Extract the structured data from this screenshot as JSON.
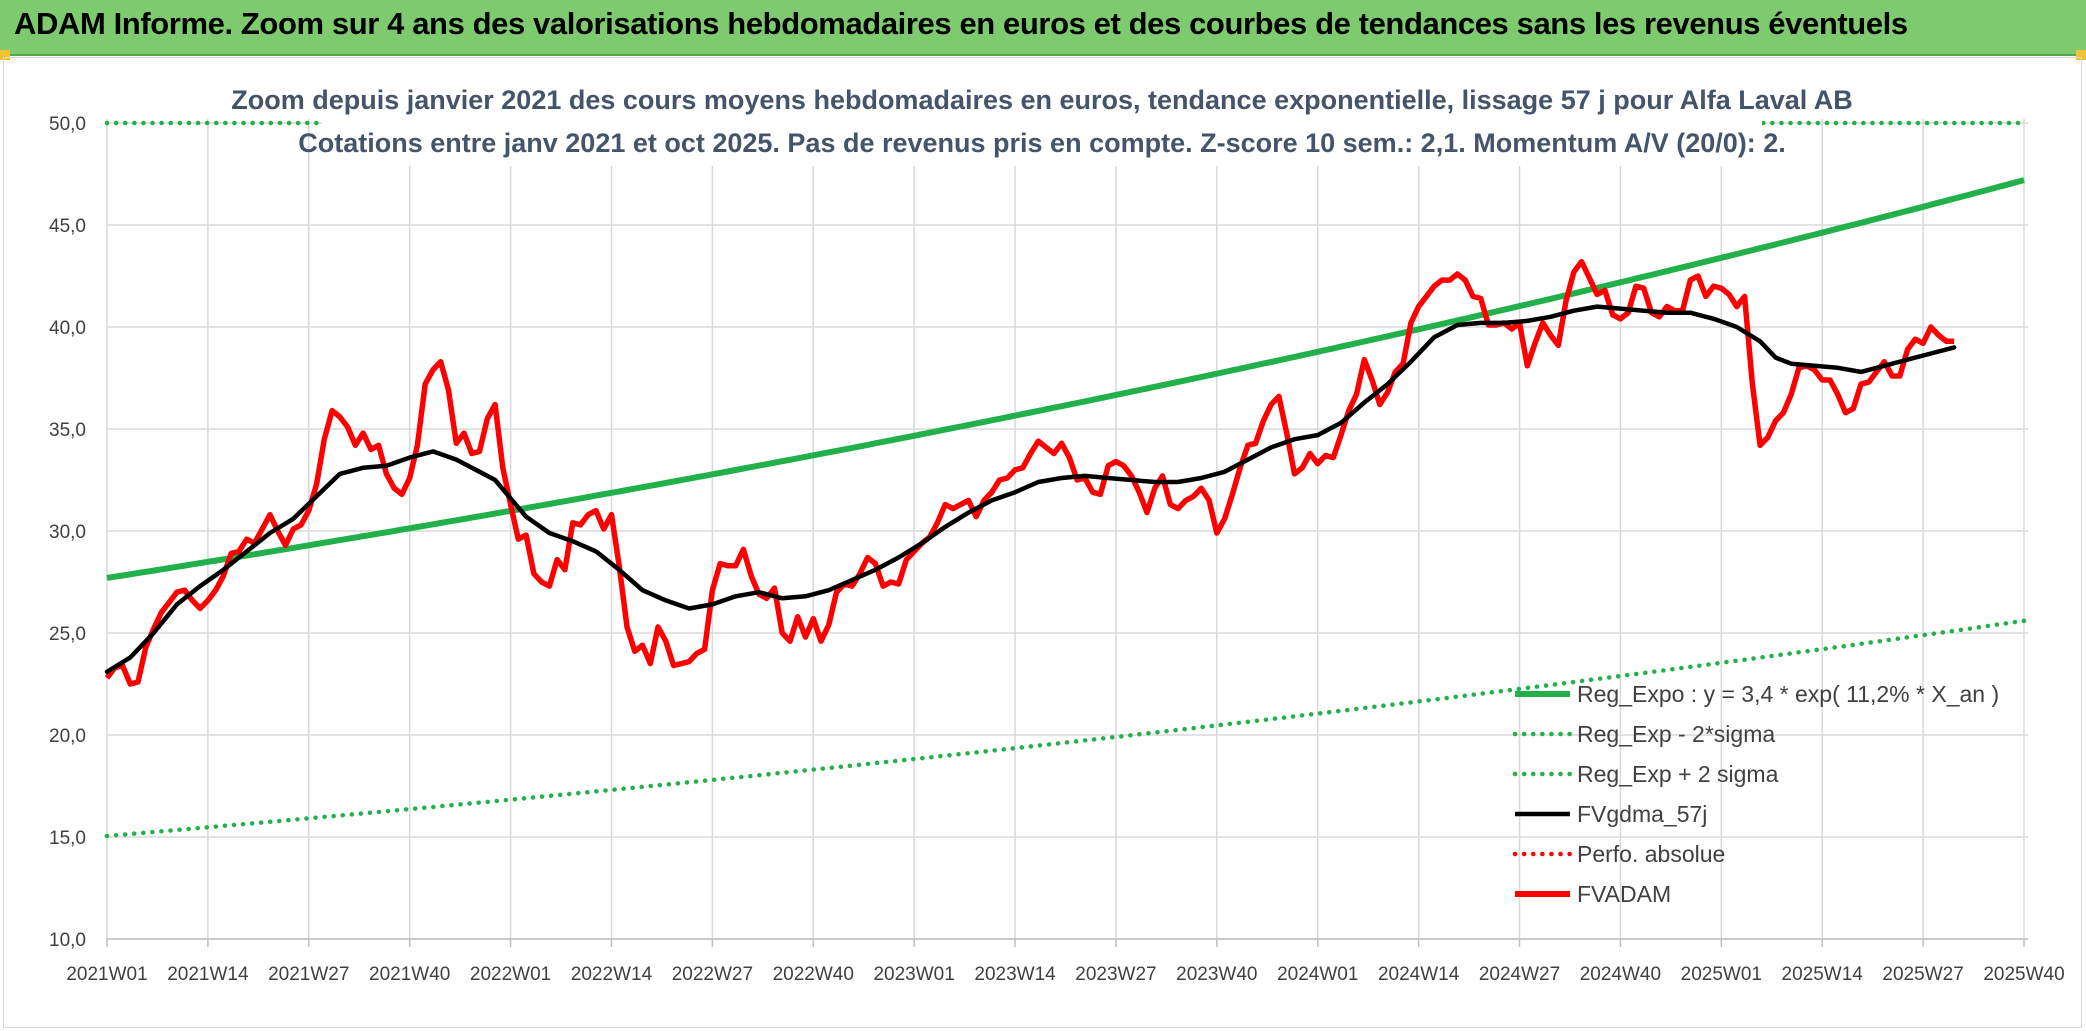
{
  "banner": {
    "title": "ADAM Informe. Zoom sur 4 ans des valorisations hebdomadaires en euros et des courbes de tendances sans les revenus éventuels"
  },
  "colors": {
    "banner_bg": "#7dcb6e",
    "reg_expo": "#22b04b",
    "sigma_bands": "#22b04b",
    "fvgdma": "#000000",
    "fvadam": "#ff0000",
    "perfo": "#ff0000",
    "grid": "#d9d9d9"
  },
  "chart_data": {
    "type": "line",
    "title": "Zoom depuis janvier 2021 des cours moyens hebdomadaires en euros, tendance exponentielle, lissage 57 j pour Alfa Laval AB",
    "subtitle": "Cotations entre janv 2021 et oct 2025. Pas de revenus pris en compte. Z-score 10 sem.: 2,1. Momentum A/V (20/0): 2.",
    "xlabel": "",
    "ylabel": "",
    "ylim": [
      10,
      50
    ],
    "y_ticks": [
      "10,0",
      "15,0",
      "20,0",
      "25,0",
      "30,0",
      "35,0",
      "40,0",
      "45,0",
      "50,0"
    ],
    "x_range": [
      0,
      247
    ],
    "x_ticks": [
      {
        "i": 0,
        "label": "2021W01"
      },
      {
        "i": 13,
        "label": "2021W14"
      },
      {
        "i": 26,
        "label": "2021W27"
      },
      {
        "i": 39,
        "label": "2021W40"
      },
      {
        "i": 52,
        "label": "2022W01"
      },
      {
        "i": 65,
        "label": "2022W14"
      },
      {
        "i": 78,
        "label": "2022W27"
      },
      {
        "i": 91,
        "label": "2022W40"
      },
      {
        "i": 104,
        "label": "2023W01"
      },
      {
        "i": 117,
        "label": "2023W14"
      },
      {
        "i": 130,
        "label": "2023W27"
      },
      {
        "i": 143,
        "label": "2023W40"
      },
      {
        "i": 156,
        "label": "2024W01"
      },
      {
        "i": 169,
        "label": "2024W14"
      },
      {
        "i": 182,
        "label": "2024W27"
      },
      {
        "i": 195,
        "label": "2024W40"
      },
      {
        "i": 208,
        "label": "2025W01"
      },
      {
        "i": 221,
        "label": "2025W14"
      },
      {
        "i": 234,
        "label": "2025W27"
      },
      {
        "i": 247,
        "label": "2025W40"
      }
    ],
    "legend": [
      {
        "key": "reg_expo",
        "label": "Reg_Expo : y = 3,4 * exp( 11,2% *  X_an )",
        "style": "solid-green"
      },
      {
        "key": "reg_minus",
        "label": "Reg_Exp - 2*sigma",
        "style": "dotted-green"
      },
      {
        "key": "reg_plus",
        "label": "Reg_Exp + 2 sigma",
        "style": "dotted-green"
      },
      {
        "key": "fvgdma",
        "label": "FVgdma_57j",
        "style": "solid-black"
      },
      {
        "key": "perfo",
        "label": "Perfo. absolue",
        "style": "dotted-red"
      },
      {
        "key": "fvadam",
        "label": "FVADAM",
        "style": "solid-red"
      }
    ],
    "series": {
      "reg_expo": {
        "start": 27.7,
        "end": 47.2
      },
      "reg_minus": {
        "start": 15.05,
        "end": 25.6
      },
      "reg_plus": {
        "start": 50.0,
        "end": 50.0
      },
      "fvadam": [
        [
          0,
          22.8
        ],
        [
          1,
          23.3
        ],
        [
          2,
          23.4
        ],
        [
          3,
          22.5
        ],
        [
          4,
          22.6
        ],
        [
          5,
          24.3
        ],
        [
          6,
          25.2
        ],
        [
          7,
          26.0
        ],
        [
          8,
          26.5
        ],
        [
          9,
          27.0
        ],
        [
          10,
          27.1
        ],
        [
          11,
          26.6
        ],
        [
          12,
          26.2
        ],
        [
          13,
          26.6
        ],
        [
          14,
          27.1
        ],
        [
          15,
          27.8
        ],
        [
          16,
          28.9
        ],
        [
          17,
          29.0
        ],
        [
          18,
          29.6
        ],
        [
          19,
          29.4
        ],
        [
          20,
          30.1
        ],
        [
          21,
          30.8
        ],
        [
          22,
          30.0
        ],
        [
          23,
          29.3
        ],
        [
          24,
          30.1
        ],
        [
          25,
          30.3
        ],
        [
          26,
          31.0
        ],
        [
          27,
          32.3
        ],
        [
          28,
          34.5
        ],
        [
          29,
          35.9
        ],
        [
          30,
          35.6
        ],
        [
          31,
          35.1
        ],
        [
          32,
          34.2
        ],
        [
          33,
          34.8
        ],
        [
          34,
          34.0
        ],
        [
          35,
          34.2
        ],
        [
          36,
          32.8
        ],
        [
          37,
          32.1
        ],
        [
          38,
          31.8
        ],
        [
          39,
          32.6
        ],
        [
          40,
          34.2
        ],
        [
          41,
          37.2
        ],
        [
          42,
          37.9
        ],
        [
          43,
          38.3
        ],
        [
          44,
          36.9
        ],
        [
          45,
          34.3
        ],
        [
          46,
          34.8
        ],
        [
          47,
          33.8
        ],
        [
          48,
          33.9
        ],
        [
          49,
          35.5
        ],
        [
          50,
          36.2
        ],
        [
          51,
          33.1
        ],
        [
          52,
          31.3
        ],
        [
          53,
          29.6
        ],
        [
          54,
          29.8
        ],
        [
          55,
          27.9
        ],
        [
          56,
          27.5
        ],
        [
          57,
          27.3
        ],
        [
          58,
          28.6
        ],
        [
          59,
          28.1
        ],
        [
          60,
          30.4
        ],
        [
          61,
          30.3
        ],
        [
          62,
          30.8
        ],
        [
          63,
          31.0
        ],
        [
          64,
          30.1
        ],
        [
          65,
          30.8
        ],
        [
          66,
          28.3
        ],
        [
          67,
          25.3
        ],
        [
          68,
          24.1
        ],
        [
          69,
          24.4
        ],
        [
          70,
          23.5
        ],
        [
          71,
          25.3
        ],
        [
          72,
          24.6
        ],
        [
          73,
          23.4
        ],
        [
          74,
          23.5
        ],
        [
          75,
          23.6
        ],
        [
          76,
          24.0
        ],
        [
          77,
          24.2
        ],
        [
          78,
          27.1
        ],
        [
          79,
          28.4
        ],
        [
          80,
          28.3
        ],
        [
          81,
          28.3
        ],
        [
          82,
          29.1
        ],
        [
          83,
          27.8
        ],
        [
          84,
          26.9
        ],
        [
          85,
          26.7
        ],
        [
          86,
          27.2
        ],
        [
          87,
          25.0
        ],
        [
          88,
          24.6
        ],
        [
          89,
          25.8
        ],
        [
          90,
          24.8
        ],
        [
          91,
          25.7
        ],
        [
          92,
          24.6
        ],
        [
          93,
          25.4
        ],
        [
          94,
          27.0
        ],
        [
          95,
          27.4
        ],
        [
          96,
          27.3
        ],
        [
          97,
          27.9
        ],
        [
          98,
          28.7
        ],
        [
          99,
          28.4
        ],
        [
          100,
          27.3
        ],
        [
          101,
          27.5
        ],
        [
          102,
          27.4
        ],
        [
          103,
          28.6
        ],
        [
          104,
          29.0
        ],
        [
          105,
          29.4
        ],
        [
          106,
          29.7
        ],
        [
          107,
          30.4
        ],
        [
          108,
          31.3
        ],
        [
          109,
          31.1
        ],
        [
          110,
          31.3
        ],
        [
          111,
          31.5
        ],
        [
          112,
          30.7
        ],
        [
          113,
          31.5
        ],
        [
          114,
          31.9
        ],
        [
          115,
          32.5
        ],
        [
          116,
          32.6
        ],
        [
          117,
          33.0
        ],
        [
          118,
          33.1
        ],
        [
          119,
          33.8
        ],
        [
          120,
          34.4
        ],
        [
          121,
          34.1
        ],
        [
          122,
          33.8
        ],
        [
          123,
          34.3
        ],
        [
          124,
          33.6
        ],
        [
          125,
          32.5
        ],
        [
          126,
          32.6
        ],
        [
          127,
          31.9
        ],
        [
          128,
          31.8
        ],
        [
          129,
          33.2
        ],
        [
          130,
          33.4
        ],
        [
          131,
          33.2
        ],
        [
          132,
          32.7
        ],
        [
          133,
          31.9
        ],
        [
          134,
          30.9
        ],
        [
          135,
          32.1
        ],
        [
          136,
          32.7
        ],
        [
          137,
          31.3
        ],
        [
          138,
          31.1
        ],
        [
          139,
          31.5
        ],
        [
          140,
          31.7
        ],
        [
          141,
          32.1
        ],
        [
          142,
          31.5
        ],
        [
          143,
          29.9
        ],
        [
          144,
          30.6
        ],
        [
          145,
          31.8
        ],
        [
          146,
          33.1
        ],
        [
          147,
          34.2
        ],
        [
          148,
          34.3
        ],
        [
          149,
          35.4
        ],
        [
          150,
          36.2
        ],
        [
          151,
          36.6
        ],
        [
          152,
          34.8
        ],
        [
          153,
          32.8
        ],
        [
          154,
          33.1
        ],
        [
          155,
          33.8
        ],
        [
          156,
          33.3
        ],
        [
          157,
          33.7
        ],
        [
          158,
          33.6
        ],
        [
          159,
          34.7
        ],
        [
          160,
          35.9
        ],
        [
          161,
          36.7
        ],
        [
          162,
          38.4
        ],
        [
          163,
          37.4
        ],
        [
          164,
          36.2
        ],
        [
          165,
          36.8
        ],
        [
          166,
          37.8
        ],
        [
          167,
          38.2
        ],
        [
          168,
          40.2
        ],
        [
          169,
          41.0
        ],
        [
          170,
          41.5
        ],
        [
          171,
          42.0
        ],
        [
          172,
          42.3
        ],
        [
          173,
          42.3
        ],
        [
          174,
          42.6
        ],
        [
          175,
          42.3
        ],
        [
          176,
          41.5
        ],
        [
          177,
          41.4
        ],
        [
          178,
          40.1
        ],
        [
          179,
          40.1
        ],
        [
          180,
          40.2
        ],
        [
          181,
          39.9
        ],
        [
          182,
          40.2
        ],
        [
          183,
          38.1
        ],
        [
          184,
          39.2
        ],
        [
          185,
          40.2
        ],
        [
          186,
          39.6
        ],
        [
          187,
          39.1
        ],
        [
          188,
          41.3
        ],
        [
          189,
          42.7
        ],
        [
          190,
          43.2
        ],
        [
          191,
          42.4
        ],
        [
          192,
          41.6
        ],
        [
          193,
          41.8
        ],
        [
          194,
          40.6
        ],
        [
          195,
          40.4
        ],
        [
          196,
          40.7
        ],
        [
          197,
          42.0
        ],
        [
          198,
          41.9
        ],
        [
          199,
          40.7
        ],
        [
          200,
          40.5
        ],
        [
          201,
          41.0
        ],
        [
          202,
          40.8
        ],
        [
          203,
          40.8
        ],
        [
          204,
          42.3
        ],
        [
          205,
          42.5
        ],
        [
          206,
          41.5
        ],
        [
          207,
          42.0
        ],
        [
          208,
          41.9
        ],
        [
          209,
          41.6
        ],
        [
          210,
          41.0
        ],
        [
          211,
          41.5
        ],
        [
          212,
          37.2
        ],
        [
          213,
          34.2
        ],
        [
          214,
          34.6
        ],
        [
          215,
          35.4
        ],
        [
          216,
          35.8
        ],
        [
          217,
          36.7
        ],
        [
          218,
          38.0
        ],
        [
          219,
          38.1
        ],
        [
          220,
          37.9
        ],
        [
          221,
          37.4
        ],
        [
          222,
          37.4
        ],
        [
          223,
          36.7
        ],
        [
          224,
          35.8
        ],
        [
          225,
          36.0
        ],
        [
          226,
          37.2
        ],
        [
          227,
          37.3
        ],
        [
          228,
          37.8
        ],
        [
          229,
          38.3
        ],
        [
          230,
          37.6
        ],
        [
          231,
          37.6
        ],
        [
          232,
          38.9
        ],
        [
          233,
          39.4
        ],
        [
          234,
          39.2
        ],
        [
          235,
          40.0
        ],
        [
          236,
          39.6
        ],
        [
          237,
          39.3
        ],
        [
          238,
          39.3
        ]
      ],
      "fvgdma": [
        [
          0,
          23.1
        ],
        [
          3,
          23.8
        ],
        [
          6,
          25.0
        ],
        [
          9,
          26.4
        ],
        [
          12,
          27.3
        ],
        [
          15,
          28.1
        ],
        [
          18,
          29.0
        ],
        [
          21,
          29.9
        ],
        [
          24,
          30.6
        ],
        [
          27,
          31.7
        ],
        [
          30,
          32.8
        ],
        [
          33,
          33.1
        ],
        [
          36,
          33.2
        ],
        [
          39,
          33.6
        ],
        [
          42,
          33.9
        ],
        [
          45,
          33.5
        ],
        [
          48,
          32.9
        ],
        [
          50,
          32.5
        ],
        [
          52,
          31.6
        ],
        [
          54,
          30.7
        ],
        [
          57,
          29.9
        ],
        [
          60,
          29.5
        ],
        [
          63,
          29.0
        ],
        [
          66,
          28.1
        ],
        [
          69,
          27.1
        ],
        [
          72,
          26.6
        ],
        [
          75,
          26.2
        ],
        [
          78,
          26.4
        ],
        [
          81,
          26.8
        ],
        [
          84,
          27.0
        ],
        [
          87,
          26.7
        ],
        [
          90,
          26.8
        ],
        [
          93,
          27.1
        ],
        [
          96,
          27.6
        ],
        [
          99,
          28.1
        ],
        [
          102,
          28.7
        ],
        [
          105,
          29.4
        ],
        [
          108,
          30.2
        ],
        [
          111,
          30.9
        ],
        [
          114,
          31.5
        ],
        [
          117,
          31.9
        ],
        [
          120,
          32.4
        ],
        [
          123,
          32.6
        ],
        [
          126,
          32.7
        ],
        [
          129,
          32.6
        ],
        [
          132,
          32.5
        ],
        [
          135,
          32.4
        ],
        [
          138,
          32.4
        ],
        [
          141,
          32.6
        ],
        [
          144,
          32.9
        ],
        [
          147,
          33.5
        ],
        [
          150,
          34.1
        ],
        [
          153,
          34.5
        ],
        [
          156,
          34.7
        ],
        [
          159,
          35.3
        ],
        [
          162,
          36.3
        ],
        [
          165,
          37.2
        ],
        [
          168,
          38.3
        ],
        [
          171,
          39.5
        ],
        [
          174,
          40.1
        ],
        [
          177,
          40.2
        ],
        [
          180,
          40.2
        ],
        [
          183,
          40.3
        ],
        [
          186,
          40.5
        ],
        [
          189,
          40.8
        ],
        [
          192,
          41.0
        ],
        [
          195,
          40.9
        ],
        [
          198,
          40.8
        ],
        [
          201,
          40.7
        ],
        [
          204,
          40.7
        ],
        [
          207,
          40.4
        ],
        [
          210,
          40.0
        ],
        [
          213,
          39.3
        ],
        [
          215,
          38.5
        ],
        [
          217,
          38.2
        ],
        [
          220,
          38.1
        ],
        [
          223,
          38.0
        ],
        [
          226,
          37.8
        ],
        [
          229,
          38.1
        ],
        [
          232,
          38.4
        ],
        [
          235,
          38.7
        ],
        [
          238,
          39.0
        ]
      ]
    }
  }
}
